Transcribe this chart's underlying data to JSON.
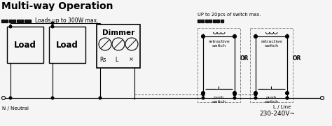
{
  "title": "Multi-way Operation",
  "bg_color": "#f5f5f5",
  "text_color": "#000000",
  "title_fontsize": 10,
  "load_label": "Load",
  "dimmer_label": "Dimmer",
  "neutral_label": "N / Neutral",
  "line_label": "L / Line",
  "voltage_label": "230-240V~",
  "loads_label": "Loads up to 300W max.",
  "switch_max_label": "UP to 20pcs of switch max.",
  "retractive_label": "retractive\nswitch",
  "push_label": "push\nswitch",
  "or_label": "OR",
  "rs_label": "Rs",
  "l_label": "L",
  "line_color": "#000000",
  "gray_color": "#888888",
  "dark_color": "#222222"
}
